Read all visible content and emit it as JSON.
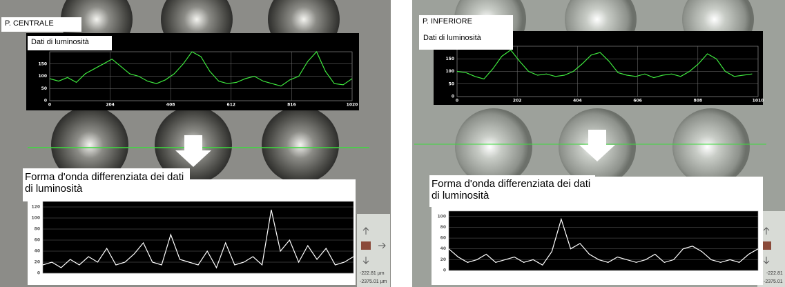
{
  "panels": [
    {
      "label": "P. CENTRALE",
      "coords": [
        "-222.81",
        "µm",
        "-2375.01",
        "µm"
      ]
    },
    {
      "label": "P. INFERIORE",
      "coords": [
        "-222.81",
        "-2375.01"
      ]
    }
  ],
  "chart_data": [
    {
      "type": "line",
      "title": "Dati di luminosità",
      "color": "#3ee83e",
      "grid": true,
      "x": [
        0,
        30,
        60,
        90,
        120,
        150,
        180,
        210,
        240,
        270,
        300,
        330,
        360,
        390,
        420,
        450,
        480,
        510,
        540,
        570,
        600,
        630,
        660,
        690,
        720,
        750,
        780,
        810,
        840,
        870,
        900,
        930,
        960,
        990,
        1020
      ],
      "values": [
        90,
        80,
        95,
        75,
        110,
        130,
        150,
        170,
        140,
        110,
        100,
        80,
        70,
        85,
        110,
        150,
        200,
        180,
        120,
        80,
        70,
        75,
        90,
        100,
        80,
        70,
        60,
        85,
        100,
        160,
        200,
        120,
        70,
        65,
        90
      ],
      "xlim": [
        0,
        1020
      ],
      "xticks": [
        0,
        204,
        408,
        612,
        816,
        1020
      ],
      "ylim": [
        0,
        200
      ],
      "yticks": [
        0,
        50,
        100,
        150
      ]
    },
    {
      "type": "line",
      "title": "Dati di luminosità",
      "color": "#3ee83e",
      "grid": true,
      "x": [
        0,
        30,
        60,
        90,
        120,
        150,
        180,
        210,
        240,
        270,
        300,
        330,
        360,
        390,
        420,
        450,
        480,
        510,
        540,
        570,
        600,
        630,
        660,
        690,
        720,
        750,
        780,
        810,
        840,
        870,
        900,
        930,
        960,
        990
      ],
      "values": [
        100,
        95,
        80,
        70,
        110,
        160,
        185,
        140,
        100,
        85,
        90,
        80,
        85,
        100,
        130,
        165,
        175,
        140,
        95,
        85,
        80,
        90,
        75,
        85,
        90,
        80,
        100,
        130,
        170,
        150,
        100,
        80,
        85,
        90
      ],
      "xlim": [
        0,
        1010
      ],
      "xticks": [
        0,
        202,
        404,
        606,
        808,
        1010
      ],
      "ylim": [
        0,
        200
      ],
      "yticks": [
        0,
        50,
        100,
        150
      ]
    },
    {
      "type": "line",
      "title": "Forma d'onda differenziata dei dati di luminosità",
      "color": "#ffffff",
      "grid": true,
      "x": [
        0,
        30,
        60,
        90,
        120,
        150,
        180,
        210,
        240,
        270,
        300,
        330,
        360,
        390,
        420,
        450,
        480,
        510,
        540,
        570,
        600,
        630,
        660,
        690,
        720,
        750,
        780,
        810,
        840,
        870,
        900,
        930,
        960,
        990,
        1020
      ],
      "values": [
        15,
        20,
        10,
        25,
        15,
        30,
        20,
        45,
        15,
        20,
        35,
        55,
        20,
        15,
        70,
        25,
        20,
        15,
        40,
        10,
        55,
        15,
        20,
        30,
        15,
        115,
        40,
        60,
        20,
        50,
        25,
        45,
        15,
        20,
        30
      ],
      "xlim": [
        0,
        1020
      ],
      "ylim": [
        0,
        130
      ],
      "yticks": [
        0,
        20,
        40,
        60,
        80,
        100,
        120
      ]
    },
    {
      "type": "line",
      "title": "Forma d'onda differenziata dei dati di luminosità",
      "color": "#ffffff",
      "grid": true,
      "x": [
        0,
        30,
        60,
        90,
        120,
        150,
        180,
        210,
        240,
        270,
        300,
        330,
        360,
        390,
        420,
        450,
        480,
        510,
        540,
        570,
        600,
        630,
        660,
        690,
        720,
        750,
        780,
        810,
        840,
        870,
        900,
        930,
        960,
        990
      ],
      "values": [
        40,
        25,
        15,
        20,
        30,
        15,
        20,
        25,
        15,
        20,
        10,
        35,
        95,
        40,
        50,
        30,
        20,
        15,
        25,
        20,
        15,
        20,
        30,
        15,
        20,
        40,
        45,
        35,
        20,
        15,
        20,
        15,
        30,
        40
      ],
      "xlim": [
        0,
        990
      ],
      "ylim": [
        0,
        110
      ],
      "yticks": [
        0,
        20,
        40,
        60,
        80,
        100
      ]
    }
  ]
}
